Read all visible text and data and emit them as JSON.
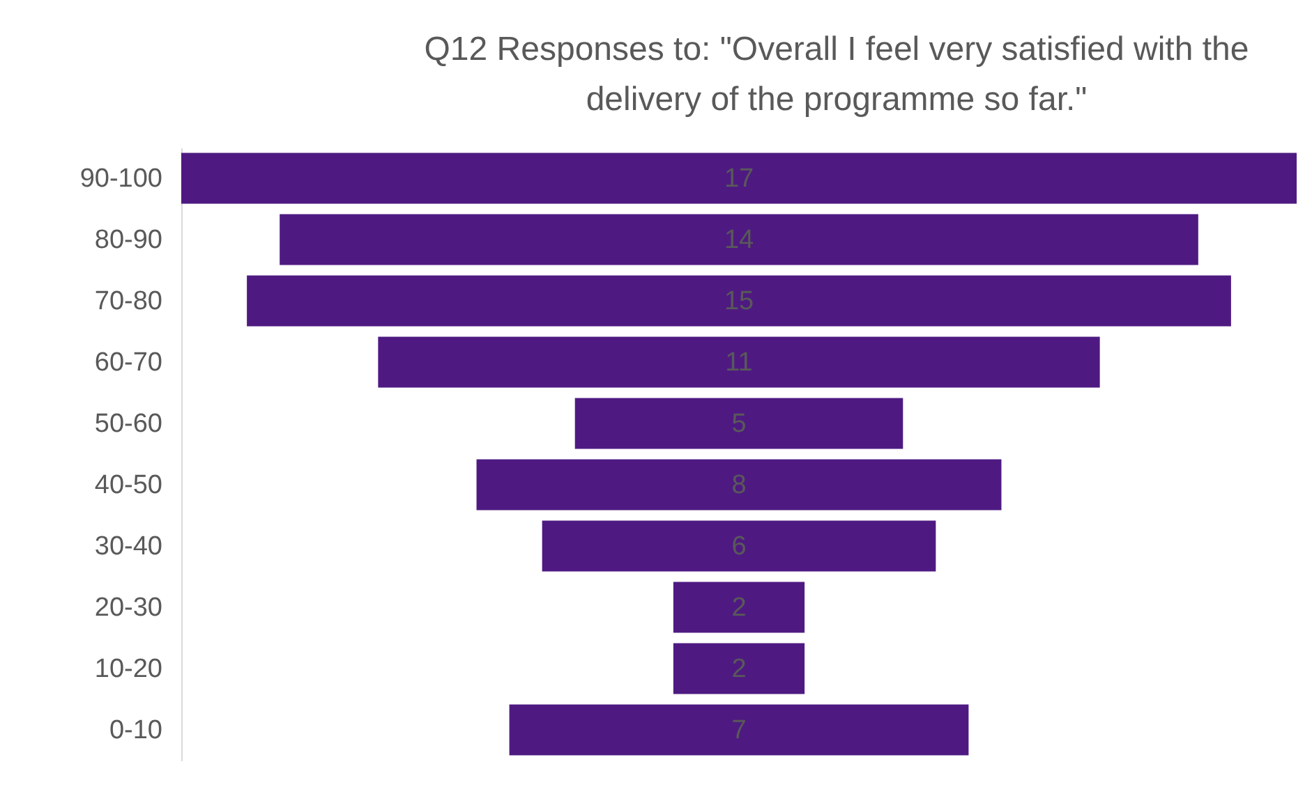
{
  "chart_data": {
    "type": "other",
    "title": "Q12 Responses to: \"Overall I feel very satisfied with the delivery of the programme so far.\"",
    "categories": [
      "90-100",
      "80-90",
      "70-80",
      "60-70",
      "50-60",
      "40-50",
      "30-40",
      "20-30",
      "10-20",
      "0-10"
    ],
    "values": [
      17,
      14,
      15,
      11,
      5,
      8,
      6,
      2,
      2,
      7
    ],
    "color": "#4e1a82",
    "data_labels": true
  }
}
